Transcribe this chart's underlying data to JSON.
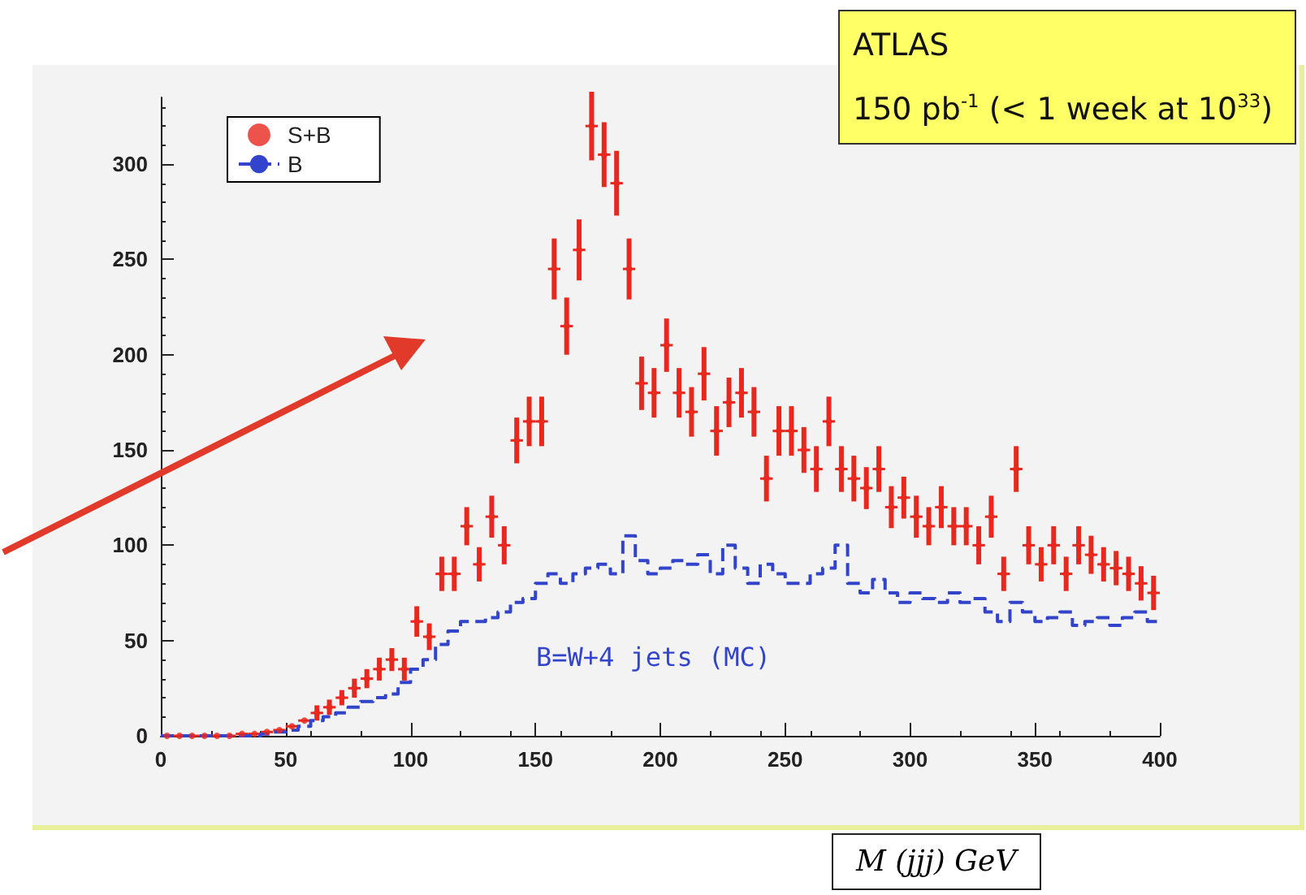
{
  "chart_data": {
    "type": "scatter",
    "xlabel": "M (jjj) GeV",
    "annotations": [
      "ATLAS",
      "150 pb$^{-1}$ (< 1 week at 10$^{33}$)",
      "B=W+4 jets (MC)"
    ],
    "series": [
      {
        "name": "S+B",
        "color": "#e8281e",
        "marker": "circle",
        "x": [
          2.5,
          7.5,
          12.5,
          17.5,
          22.5,
          27.5,
          32.5,
          37.5,
          42.5,
          47.5,
          52.5,
          57.5,
          62.5,
          67.5,
          72.5,
          77.5,
          82.5,
          87.5,
          92.5,
          97.5,
          102.5,
          107.5,
          112.5,
          117.5,
          122.5,
          127.5,
          132.5,
          137.5,
          142.5,
          147.5,
          152.5,
          157.5,
          162.5,
          167.5,
          172.5,
          177.5,
          182.5,
          187.5,
          192.5,
          197.5,
          202.5,
          207.5,
          212.5,
          217.5,
          222.5,
          227.5,
          232.5,
          237.5,
          242.5,
          247.5,
          252.5,
          257.5,
          262.5,
          267.5,
          272.5,
          277.5,
          282.5,
          287.5,
          292.5,
          297.5,
          302.5,
          307.5,
          312.5,
          317.5,
          322.5,
          327.5,
          332.5,
          337.5,
          342.5,
          347.5,
          352.5,
          357.5,
          362.5,
          367.5,
          372.5,
          377.5,
          382.5,
          387.5,
          392.5,
          397.5
        ],
        "values": [
          0,
          0,
          0,
          0,
          0,
          0,
          1,
          1,
          2,
          3,
          5,
          8,
          12,
          15,
          20,
          25,
          30,
          35,
          40,
          35,
          60,
          52,
          85,
          85,
          110,
          90,
          115,
          100,
          155,
          165,
          165,
          245,
          215,
          255,
          320,
          305,
          290,
          245,
          185,
          180,
          205,
          180,
          170,
          190,
          160,
          175,
          180,
          170,
          135,
          160,
          160,
          150,
          140,
          165,
          140,
          135,
          130,
          140,
          120,
          125,
          115,
          110,
          120,
          110,
          110,
          100,
          115,
          85,
          140,
          100,
          90,
          100,
          85,
          100,
          95,
          90,
          88,
          85,
          80,
          75
        ],
        "errors": [
          null,
          null,
          null,
          null,
          null,
          null,
          null,
          null,
          null,
          null,
          null,
          null,
          4,
          4,
          4,
          5,
          5,
          6,
          6,
          6,
          8,
          7,
          9,
          9,
          10,
          9,
          11,
          10,
          12,
          13,
          13,
          16,
          15,
          16,
          18,
          17,
          17,
          16,
          14,
          13,
          14,
          13,
          13,
          14,
          13,
          13,
          13,
          13,
          12,
          13,
          13,
          12,
          12,
          13,
          12,
          12,
          11,
          12,
          11,
          11,
          11,
          10,
          11,
          10,
          10,
          10,
          11,
          9,
          12,
          10,
          9,
          10,
          9,
          10,
          10,
          9,
          9,
          9,
          9,
          9
        ],
        "xerrors": [
          2.5,
          2.5,
          2.5,
          2.5,
          2.5,
          2.5,
          2.5,
          2.5,
          2.5,
          2.5,
          2.5,
          2.5,
          2.5,
          2.5,
          2.5,
          2.5,
          2.5,
          2.5,
          2.5,
          2.5,
          2.5,
          2.5,
          2.5,
          2.5,
          2.5,
          2.5,
          2.5,
          2.5,
          2.5,
          2.5,
          2.5,
          2.5,
          2.5,
          2.5,
          2.5,
          2.5,
          2.5,
          2.5,
          2.5,
          2.5,
          2.5,
          2.5,
          2.5,
          2.5,
          2.5,
          2.5,
          2.5,
          2.5,
          2.5,
          2.5,
          2.5,
          2.5,
          2.5,
          2.5,
          2.5,
          2.5,
          2.5,
          2.5,
          2.5,
          2.5,
          2.5,
          2.5,
          2.5,
          2.5,
          2.5,
          2.5,
          2.5,
          2.5,
          2.5,
          2.5,
          2.5,
          2.5,
          2.5,
          2.5,
          2.5,
          2.5,
          2.5,
          2.5,
          2.5,
          2.5
        ]
      },
      {
        "name": "B",
        "type": "step",
        "color": "#3344cc",
        "line_style": "dashed",
        "x": [
          0,
          5,
          10,
          15,
          20,
          25,
          30,
          35,
          40,
          45,
          50,
          55,
          60,
          65,
          70,
          75,
          80,
          85,
          90,
          95,
          100,
          105,
          110,
          115,
          120,
          125,
          130,
          135,
          140,
          145,
          150,
          155,
          160,
          165,
          170,
          175,
          180,
          185,
          190,
          195,
          200,
          205,
          210,
          215,
          220,
          225,
          230,
          235,
          240,
          245,
          250,
          255,
          260,
          265,
          270,
          275,
          280,
          285,
          290,
          295,
          300,
          305,
          310,
          315,
          320,
          325,
          330,
          335,
          340,
          345,
          350,
          355,
          360,
          365,
          370,
          375,
          380,
          385,
          390,
          395,
          400
        ],
        "values": [
          0,
          0,
          0,
          0,
          0,
          0,
          0,
          0,
          1,
          2,
          3,
          5,
          8,
          10,
          12,
          15,
          18,
          20,
          22,
          28,
          35,
          40,
          48,
          55,
          60,
          60,
          62,
          65,
          70,
          72,
          80,
          85,
          80,
          85,
          88,
          90,
          85,
          105,
          92,
          85,
          88,
          92,
          90,
          95,
          85,
          100,
          88,
          80,
          90,
          85,
          80,
          80,
          85,
          88,
          100,
          80,
          75,
          82,
          75,
          70,
          75,
          72,
          70,
          75,
          70,
          72,
          65,
          60,
          70,
          65,
          60,
          62,
          65,
          58,
          60,
          62,
          58,
          62,
          65,
          60,
          60
        ]
      }
    ],
    "xlim": [
      0,
      400
    ],
    "xticks": [
      0,
      50,
      100,
      150,
      200,
      250,
      300,
      350,
      400
    ],
    "ylim": [
      0,
      335
    ],
    "yticks": [
      0,
      50,
      100,
      150,
      200,
      250,
      300
    ],
    "grid": false,
    "legend": "top left"
  }
}
